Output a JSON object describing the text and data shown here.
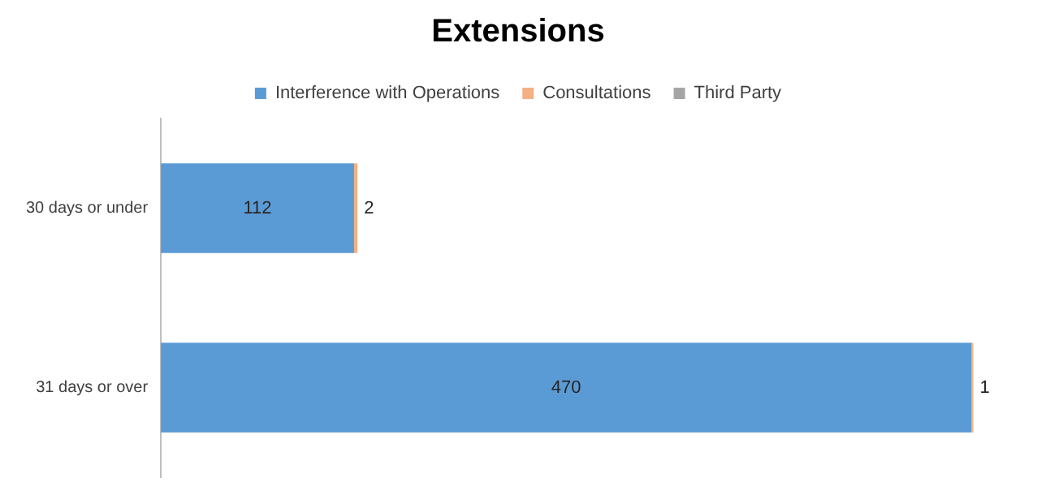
{
  "chart_data": {
    "type": "bar",
    "title": "Extensions",
    "orientation": "horizontal",
    "stacked": true,
    "data_labels": true,
    "legend": "top",
    "categories": [
      "30 days or under",
      "31 days or over"
    ],
    "series": [
      {
        "name": "Interference with Operations",
        "color": "#5b9bd5",
        "values": [
          112,
          470
        ]
      },
      {
        "name": "Consultations",
        "color": "#f4b183",
        "values": [
          2,
          1
        ]
      },
      {
        "name": "Third Party",
        "color": "#a5a5a5",
        "values": [
          null,
          null
        ]
      }
    ]
  }
}
